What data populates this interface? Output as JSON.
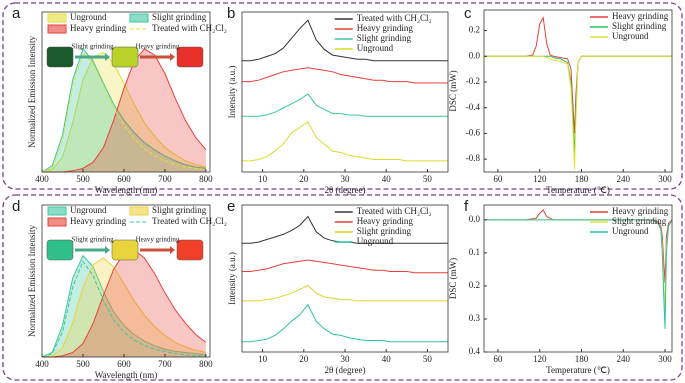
{
  "chart_data": [
    {
      "type": "line",
      "panel_label": "a",
      "fill": true,
      "legend": "upper-left",
      "x_label": "Wavelength (nm)",
      "y_label": "Normalized Emission Intensity",
      "annotations": [
        "Slight grinding",
        "Heavy grinding"
      ],
      "x": [
        400,
        425,
        450,
        475,
        500,
        525,
        550,
        575,
        600,
        625,
        650,
        675,
        700,
        725,
        750,
        775,
        800
      ],
      "xlim": [
        400,
        810
      ],
      "xticks": [
        400,
        500,
        600,
        700,
        800
      ],
      "ylim": [
        0,
        1.3
      ],
      "series": [
        {
          "name": "Unground",
          "color": "#e3e03a",
          "values": [
            0,
            0.02,
            0.12,
            0.4,
            0.75,
            0.93,
            0.97,
            0.88,
            0.72,
            0.55,
            0.4,
            0.29,
            0.2,
            0.14,
            0.09,
            0.06,
            0.04
          ]
        },
        {
          "name": "Slight grinding",
          "color": "#3cc8a0",
          "values": [
            0,
            0.05,
            0.3,
            0.75,
            1.0,
            0.9,
            0.72,
            0.55,
            0.42,
            0.32,
            0.24,
            0.18,
            0.13,
            0.09,
            0.06,
            0.04,
            0.03
          ]
        },
        {
          "name": "Heavy grinding",
          "color": "#e8413a",
          "values": [
            0,
            0,
            0,
            0.01,
            0.03,
            0.08,
            0.2,
            0.42,
            0.68,
            0.9,
            1.0,
            0.95,
            0.8,
            0.6,
            0.42,
            0.28,
            0.18
          ]
        },
        {
          "name": "Treated with CH₂Cl₂",
          "color": "#e3e03a",
          "dashed": true,
          "values": [
            0,
            0.03,
            0.25,
            0.7,
            0.97,
            0.88,
            0.7,
            0.52,
            0.38,
            0.27,
            0.19,
            0.13,
            0.09,
            0.06,
            0.04,
            0.03,
            0.02
          ]
        }
      ]
    },
    {
      "type": "line",
      "panel_label": "b",
      "legend": "upper-right",
      "x_label": "2θ (degree)",
      "y_label": "Intensity (a.u.)",
      "x": [
        5,
        7,
        9,
        11,
        13,
        15,
        17,
        19,
        21,
        23,
        25,
        27,
        29,
        31,
        33,
        35,
        37,
        39,
        41,
        43,
        45,
        47,
        49,
        51,
        53,
        55
      ],
      "xlim": [
        5,
        55
      ],
      "xticks": [
        10,
        20,
        30,
        40,
        50
      ],
      "ylim": [
        0,
        11.5
      ],
      "series": [
        {
          "name": "Treated with CH₂Cl₂",
          "color": "#333333",
          "values": [
            8.0,
            8.0,
            8.1,
            8.3,
            8.5,
            8.9,
            9.6,
            10.3,
            10.9,
            9.5,
            8.8,
            8.4,
            8.3,
            8.2,
            8.1,
            8.1,
            8.0,
            8.0,
            8.0,
            8.0,
            8.0,
            8.0,
            8.0,
            8.0,
            8.0,
            8.0
          ]
        },
        {
          "name": "Heavy grinding",
          "color": "#e8413a",
          "values": [
            6.5,
            6.5,
            6.6,
            6.8,
            7.0,
            7.2,
            7.3,
            7.4,
            7.5,
            7.4,
            7.3,
            7.2,
            7.0,
            6.9,
            6.8,
            6.7,
            6.6,
            6.6,
            6.5,
            6.5,
            6.5,
            6.4,
            6.4,
            6.4,
            6.4,
            6.4
          ]
        },
        {
          "name": "Slight grinding",
          "color": "#3cc8a0",
          "values": [
            4.0,
            4.0,
            4.0,
            4.1,
            4.3,
            4.6,
            4.9,
            5.2,
            5.6,
            4.8,
            4.5,
            4.2,
            4.2,
            4.1,
            4.1,
            4.0,
            4.0,
            4.0,
            4.0,
            4.0,
            4.0,
            4.0,
            4.0,
            4.0,
            4.0,
            4.0
          ]
        },
        {
          "name": "Unground",
          "color": "#d9dc2a",
          "values": [
            0.8,
            0.8,
            0.9,
            1.1,
            1.5,
            2.0,
            2.8,
            3.2,
            3.6,
            2.5,
            2.0,
            1.5,
            1.4,
            1.2,
            1.1,
            1.0,
            0.9,
            0.9,
            0.9,
            0.9,
            0.8,
            0.8,
            0.8,
            0.8,
            0.8,
            0.8
          ]
        }
      ]
    },
    {
      "type": "line",
      "panel_label": "c",
      "legend": "upper-right",
      "x_label": "Temperature (℃)",
      "y_label": "DSC (mW)",
      "x": [
        40,
        60,
        80,
        100,
        110,
        115,
        120,
        125,
        130,
        135,
        140,
        150,
        160,
        165,
        168,
        170,
        172,
        175,
        180,
        200,
        240,
        280,
        310
      ],
      "xlim": [
        40,
        310
      ],
      "xticks": [
        60,
        120,
        180,
        240,
        300
      ],
      "ylim": [
        -0.9,
        0.36
      ],
      "yticks": [
        0.2,
        {
          "value": 0,
          "label": "0.0"
        },
        -0.2,
        -0.4,
        -0.6,
        -0.8
      ],
      "series": [
        {
          "name": "Heavy grinding",
          "color": "#e8413a",
          "values": [
            0,
            0,
            0,
            0,
            0.01,
            0.08,
            0.25,
            0.3,
            0.1,
            0.01,
            0,
            -0.01,
            -0.02,
            -0.1,
            -0.4,
            -0.6,
            -0.3,
            -0.05,
            0,
            0,
            0,
            0,
            0
          ]
        },
        {
          "name": "Slight grinding",
          "color": "#2ec26a",
          "values": [
            0,
            0,
            0,
            0,
            0,
            0,
            0,
            0,
            0,
            0,
            -0.01,
            -0.02,
            -0.05,
            -0.2,
            -0.5,
            -0.78,
            -0.4,
            -0.05,
            0,
            0,
            0,
            0,
            0
          ]
        },
        {
          "name": "Unground",
          "color": "#e3e03a",
          "values": [
            0,
            0,
            0,
            0,
            0,
            0,
            0,
            0,
            -0.01,
            -0.02,
            -0.03,
            -0.04,
            -0.06,
            -0.25,
            -0.6,
            -0.88,
            -0.5,
            -0.05,
            0,
            0,
            0,
            0,
            0
          ]
        }
      ]
    },
    {
      "type": "line",
      "panel_label": "d",
      "fill": true,
      "legend": "upper-left",
      "x_label": "Wavelength (nm)",
      "y_label": "Normalized Emission Intensity",
      "annotations": [
        "Slight grinding",
        "Heavy grinding"
      ],
      "x": [
        400,
        425,
        450,
        475,
        500,
        525,
        550,
        575,
        600,
        625,
        650,
        675,
        700,
        725,
        750,
        775,
        800
      ],
      "xlim": [
        400,
        810
      ],
      "xticks": [
        400,
        500,
        600,
        700,
        800
      ],
      "ylim": [
        0,
        1.35
      ],
      "series": [
        {
          "name": "Unground",
          "color": "#3cc8a0",
          "values": [
            0,
            0.04,
            0.28,
            0.7,
            0.9,
            0.8,
            0.58,
            0.4,
            0.28,
            0.2,
            0.14,
            0.1,
            0.07,
            0.05,
            0.04,
            0.03,
            0.02
          ]
        },
        {
          "name": "Slight grinding",
          "color": "#f0d23c",
          "values": [
            0,
            0.01,
            0.08,
            0.3,
            0.62,
            0.82,
            0.88,
            0.8,
            0.65,
            0.5,
            0.37,
            0.27,
            0.19,
            0.13,
            0.09,
            0.06,
            0.04
          ]
        },
        {
          "name": "Heavy grinding",
          "color": "#e8413a",
          "values": [
            0,
            0,
            0.01,
            0.04,
            0.12,
            0.3,
            0.55,
            0.78,
            0.92,
            0.95,
            0.88,
            0.74,
            0.57,
            0.42,
            0.3,
            0.2,
            0.13
          ]
        },
        {
          "name": "Treated with CH₂Cl₂",
          "color": "#3cc8a0",
          "dashed": true,
          "values": [
            0,
            0.03,
            0.22,
            0.62,
            0.85,
            0.72,
            0.5,
            0.33,
            0.22,
            0.15,
            0.1,
            0.07,
            0.05,
            0.03,
            0.02,
            0.01,
            0.01
          ]
        }
      ]
    },
    {
      "type": "line",
      "panel_label": "e",
      "legend": "upper-right",
      "x_label": "2θ (degree)",
      "y_label": "Intensity (a.u.)",
      "x": [
        5,
        7,
        9,
        11,
        13,
        15,
        17,
        19,
        21,
        23,
        25,
        27,
        29,
        31,
        33,
        35,
        37,
        39,
        41,
        43,
        45,
        47,
        49,
        51,
        53,
        55
      ],
      "xlim": [
        5,
        55
      ],
      "xticks": [
        10,
        20,
        30,
        40,
        50
      ],
      "ylim": [
        0,
        11.5
      ],
      "series": [
        {
          "name": "Treated with CH₂Cl₂",
          "color": "#333333",
          "values": [
            8.5,
            8.5,
            8.6,
            8.8,
            9.0,
            9.2,
            9.5,
            9.9,
            10.6,
            9.4,
            8.9,
            8.7,
            8.6,
            8.6,
            8.5,
            8.5,
            8.5,
            8.5,
            8.5,
            8.5,
            8.5,
            8.5,
            8.5,
            8.5,
            8.5,
            8.5
          ]
        },
        {
          "name": "Heavy grinding",
          "color": "#e8413a",
          "values": [
            6.3,
            6.3,
            6.4,
            6.5,
            6.7,
            6.9,
            7.0,
            7.1,
            7.2,
            7.1,
            7.0,
            6.9,
            6.8,
            6.7,
            6.6,
            6.5,
            6.4,
            6.4,
            6.3,
            6.3,
            6.3,
            6.2,
            6.2,
            6.2,
            6.2,
            6.2
          ]
        },
        {
          "name": "Slight grinding",
          "color": "#e3d02a",
          "values": [
            4.0,
            4.0,
            4.0,
            4.1,
            4.2,
            4.4,
            4.6,
            4.9,
            5.2,
            4.6,
            4.3,
            4.2,
            4.1,
            4.1,
            4.0,
            4.0,
            4.0,
            4.0,
            4.0,
            4.0,
            4.0,
            4.0,
            4.0,
            4.0,
            4.0,
            4.0
          ]
        },
        {
          "name": "Unground",
          "color": "#2ec2a0",
          "values": [
            0.8,
            0.8,
            0.9,
            1.0,
            1.3,
            1.8,
            2.4,
            2.9,
            3.7,
            2.4,
            1.8,
            1.4,
            1.3,
            1.1,
            1.0,
            0.9,
            0.9,
            0.9,
            0.8,
            0.8,
            0.8,
            0.8,
            0.8,
            0.8,
            0.8,
            0.8
          ]
        }
      ]
    },
    {
      "type": "line",
      "panel_label": "f",
      "legend": "upper-right",
      "x_label": "Temperature (℃)",
      "y_label": "DSC (mW)",
      "x": [
        40,
        60,
        80,
        100,
        115,
        120,
        125,
        130,
        140,
        180,
        240,
        280,
        290,
        294,
        296,
        298,
        300,
        302,
        305,
        310
      ],
      "xlim": [
        40,
        310
      ],
      "xticks": [
        60,
        120,
        180,
        240,
        300
      ],
      "ylim": [
        0.4,
        -0.045
      ],
      "yticks": [
        {
          "value": 0,
          "label": "0.0"
        },
        0.1,
        0.2,
        0.3,
        0.4
      ],
      "series": [
        {
          "name": "Heavy grinding",
          "color": "#e8413a",
          "values": [
            0,
            0,
            0,
            0,
            -0.005,
            -0.02,
            -0.03,
            -0.01,
            0,
            0,
            0,
            0,
            0.005,
            0.02,
            0.05,
            0.12,
            0.19,
            0.05,
            0.01,
            0
          ]
        },
        {
          "name": "Slight grinding",
          "color": "#e3e03a",
          "values": [
            0,
            0,
            0,
            0,
            0,
            0,
            0,
            0,
            0,
            0,
            0,
            0,
            0.01,
            0.03,
            0.08,
            0.18,
            0.27,
            0.08,
            0.02,
            0
          ]
        },
        {
          "name": "Unground",
          "color": "#2ec2a0",
          "values": [
            0,
            0,
            0,
            0,
            0,
            0,
            0,
            0,
            0,
            0,
            0,
            0,
            0.01,
            0.03,
            0.1,
            0.22,
            0.33,
            0.1,
            0.02,
            0
          ]
        }
      ]
    }
  ]
}
